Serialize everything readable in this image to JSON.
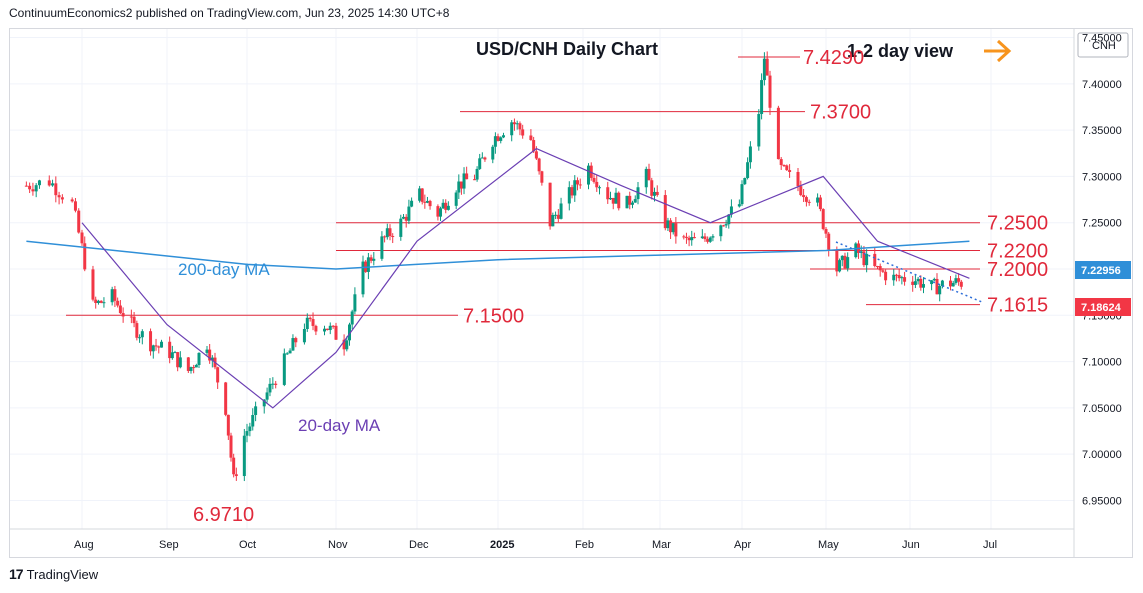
{
  "header": {
    "publisher": "ContinuumEconomics2 published on TradingView.com, Jun 23, 2025 14:30 UTC+8"
  },
  "footer": {
    "brand": "TradingView",
    "logo_text": "17"
  },
  "chart": {
    "title": "USD/CNH Daily Chart",
    "view_label": "1-2 day view",
    "symbol": "CNH",
    "price_tags": {
      "ma200": "7.22956",
      "last": "7.18624"
    },
    "ma_labels": {
      "ma200": "200-day MA",
      "ma20": "20-day MA"
    },
    "levels": [
      "7.4290",
      "7.3700",
      "7.2500",
      "7.2200",
      "7.2000",
      "7.1615",
      "7.1500",
      "6.9710"
    ]
  },
  "colors": {
    "up": "#089981",
    "down": "#f23645",
    "ma200": "#2f8fd8",
    "ma20": "#6b3fb3",
    "level_line": "#e0293b",
    "arrow": "#f7941d"
  },
  "chart_data": {
    "type": "candlestick",
    "title": "USD/CNH Daily Chart",
    "y_ticks": [
      "7.45000",
      "7.40000",
      "7.35000",
      "7.30000",
      "7.25000",
      "7.20000",
      "7.15000",
      "7.10000",
      "7.05000",
      "7.00000",
      "6.95000"
    ],
    "ylim": [
      6.93,
      7.47
    ],
    "x_ticks": [
      "Aug",
      "Sep",
      "Oct",
      "Nov",
      "Dec",
      "2025",
      "Feb",
      "Mar",
      "Apr",
      "May",
      "Jun",
      "Jul"
    ],
    "last_price": 7.18624,
    "ma200_last": 7.22956,
    "key_levels": [
      7.429,
      7.37,
      7.25,
      7.22,
      7.2,
      7.1615,
      7.15,
      6.971
    ],
    "price_path": [
      [
        "2024-07-15",
        7.29
      ],
      [
        "2024-07-22",
        7.295
      ],
      [
        "2024-07-29",
        7.27
      ],
      [
        "2024-08-05",
        7.16
      ],
      [
        "2024-08-12",
        7.17
      ],
      [
        "2024-08-19",
        7.14
      ],
      [
        "2024-08-26",
        7.12
      ],
      [
        "2024-09-02",
        7.11
      ],
      [
        "2024-09-09",
        7.09
      ],
      [
        "2024-09-16",
        7.12
      ],
      [
        "2024-09-23",
        7.05
      ],
      [
        "2024-09-26",
        6.971
      ],
      [
        "2024-09-30",
        7.02
      ],
      [
        "2024-10-07",
        7.06
      ],
      [
        "2024-10-14",
        7.1
      ],
      [
        "2024-10-21",
        7.14
      ],
      [
        "2024-10-28",
        7.14
      ],
      [
        "2024-11-04",
        7.12
      ],
      [
        "2024-11-11",
        7.2
      ],
      [
        "2024-11-18",
        7.23
      ],
      [
        "2024-11-25",
        7.25
      ],
      [
        "2024-12-02",
        7.28
      ],
      [
        "2024-12-09",
        7.26
      ],
      [
        "2024-12-16",
        7.29
      ],
      [
        "2024-12-23",
        7.3
      ],
      [
        "2024-12-30",
        7.34
      ],
      [
        "2025-01-06",
        7.36
      ],
      [
        "2025-01-13",
        7.34
      ],
      [
        "2025-01-20",
        7.25
      ],
      [
        "2025-01-27",
        7.28
      ],
      [
        "2025-02-03",
        7.31
      ],
      [
        "2025-02-10",
        7.28
      ],
      [
        "2025-02-17",
        7.27
      ],
      [
        "2025-02-24",
        7.3
      ],
      [
        "2025-03-03",
        7.25
      ],
      [
        "2025-03-10",
        7.23
      ],
      [
        "2025-03-17",
        7.23
      ],
      [
        "2025-03-24",
        7.25
      ],
      [
        "2025-03-31",
        7.27
      ],
      [
        "2025-04-07",
        7.37
      ],
      [
        "2025-04-09",
        7.429
      ],
      [
        "2025-04-14",
        7.31
      ],
      [
        "2025-04-21",
        7.29
      ],
      [
        "2025-04-28",
        7.27
      ],
      [
        "2025-05-05",
        7.2
      ],
      [
        "2025-05-12",
        7.22
      ],
      [
        "2025-05-19",
        7.2
      ],
      [
        "2025-05-26",
        7.19
      ],
      [
        "2025-06-02",
        7.19
      ],
      [
        "2025-06-09",
        7.18
      ],
      [
        "2025-06-16",
        7.185
      ],
      [
        "2025-06-23",
        7.186
      ]
    ],
    "series": [
      {
        "name": "200-day MA",
        "values": [
          [
            "2024-07-15",
            7.23
          ],
          [
            "2024-10-01",
            7.205
          ],
          [
            "2024-11-01",
            7.2
          ],
          [
            "2025-01-01",
            7.21
          ],
          [
            "2025-03-01",
            7.215
          ],
          [
            "2025-05-01",
            7.22
          ],
          [
            "2025-06-23",
            7.23
          ]
        ]
      },
      {
        "name": "20-day MA",
        "values": [
          [
            "2024-08-01",
            7.25
          ],
          [
            "2024-09-01",
            7.14
          ],
          [
            "2024-10-10",
            7.05
          ],
          [
            "2024-11-01",
            7.11
          ],
          [
            "2024-12-01",
            7.23
          ],
          [
            "2025-01-15",
            7.33
          ],
          [
            "2025-02-15",
            7.29
          ],
          [
            "2025-03-20",
            7.25
          ],
          [
            "2025-04-30",
            7.3
          ],
          [
            "2025-05-20",
            7.23
          ],
          [
            "2025-06-23",
            7.19
          ]
        ]
      }
    ]
  }
}
